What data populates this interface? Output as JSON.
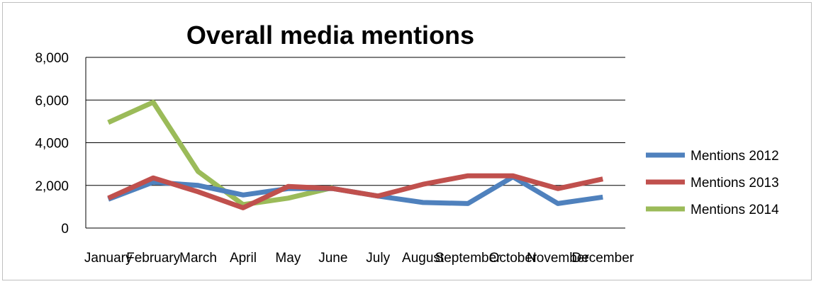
{
  "chart_data": {
    "type": "line",
    "title": "Overall media mentions",
    "xlabel": "",
    "ylabel": "",
    "categories": [
      "January",
      "February",
      "March",
      "April",
      "May",
      "June",
      "July",
      "August",
      "September",
      "October",
      "November",
      "December"
    ],
    "ylim": [
      0,
      8000
    ],
    "yticks": [
      0,
      2000,
      4000,
      6000,
      8000
    ],
    "ytick_labels": [
      "0",
      "2,000",
      "4,000",
      "6,000",
      "8,000"
    ],
    "grid": true,
    "legend_position": "right",
    "series": [
      {
        "name": "Mentions 2012",
        "color": "#4f81bd",
        "values": [
          1350,
          2150,
          2000,
          1550,
          1850,
          1850,
          1500,
          1200,
          1150,
          2400,
          1150,
          1450
        ]
      },
      {
        "name": "Mentions 2013",
        "color": "#c0504d",
        "values": [
          1400,
          2350,
          1700,
          950,
          1950,
          1850,
          1500,
          2050,
          2450,
          2450,
          1850,
          2300
        ]
      },
      {
        "name": "Mentions 2014",
        "color": "#9bbb59",
        "values": [
          4950,
          5900,
          2650,
          1100,
          1400,
          1900,
          null,
          null,
          null,
          null,
          null,
          null
        ]
      }
    ]
  }
}
